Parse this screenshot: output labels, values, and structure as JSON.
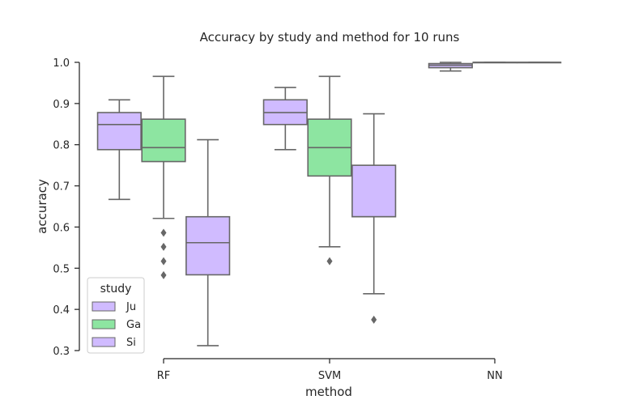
{
  "chart_data": {
    "type": "box",
    "title": "Accuracy by study and method for 10 runs",
    "xlabel": "method",
    "ylabel": "accuracy",
    "categories": [
      "RF",
      "SVM",
      "NN"
    ],
    "ylim": [
      0.28,
      1.02
    ],
    "yticks": [
      "0.3",
      "0.4",
      "0.5",
      "0.6",
      "0.7",
      "0.8",
      "0.9",
      "1.0"
    ],
    "legend": {
      "title": "study",
      "position": "lower-left"
    },
    "colors": {
      "Ju": "#d0bbff",
      "Ga": "#8de5a1",
      "Si": "#d0bbff",
      "line": "#676767"
    },
    "series": [
      {
        "name": "Ju",
        "boxes": [
          {
            "category": "RF",
            "whisker_low": 0.667,
            "q1": 0.788,
            "median": 0.849,
            "q3": 0.878,
            "whisker_high": 0.909,
            "outliers": []
          },
          {
            "category": "SVM",
            "whisker_low": 0.788,
            "q1": 0.849,
            "median": 0.878,
            "q3": 0.909,
            "whisker_high": 0.939,
            "outliers": []
          },
          {
            "category": "NN",
            "whisker_low": 0.979,
            "q1": 0.987,
            "median": 0.993,
            "q3": 0.997,
            "whisker_high": 1.0,
            "outliers": []
          }
        ]
      },
      {
        "name": "Ga",
        "boxes": [
          {
            "category": "RF",
            "whisker_low": 0.621,
            "q1": 0.759,
            "median": 0.793,
            "q3": 0.862,
            "whisker_high": 0.966,
            "outliers": [
              0.586,
              0.552,
              0.517,
              0.483
            ]
          },
          {
            "category": "SVM",
            "whisker_low": 0.552,
            "q1": 0.724,
            "median": 0.793,
            "q3": 0.862,
            "whisker_high": 0.966,
            "outliers": [
              0.517
            ]
          },
          {
            "category": "NN",
            "whisker_low": 1.0,
            "q1": 1.0,
            "median": 1.0,
            "q3": 1.0,
            "whisker_high": 1.0,
            "outliers": []
          }
        ]
      },
      {
        "name": "Si",
        "boxes": [
          {
            "category": "RF",
            "whisker_low": 0.312,
            "q1": 0.484,
            "median": 0.562,
            "q3": 0.625,
            "whisker_high": 0.812,
            "outliers": []
          },
          {
            "category": "SVM",
            "whisker_low": 0.438,
            "q1": 0.625,
            "median": 0.625,
            "q3": 0.75,
            "whisker_high": 0.875,
            "outliers": [
              0.375
            ]
          },
          {
            "category": "NN",
            "whisker_low": 1.0,
            "q1": 1.0,
            "median": 1.0,
            "q3": 1.0,
            "whisker_high": 1.0,
            "outliers": []
          }
        ]
      }
    ]
  }
}
